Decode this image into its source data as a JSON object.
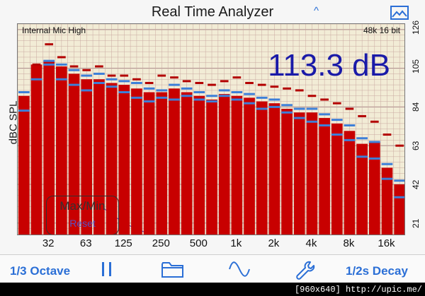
{
  "app": {
    "title": "Real Time Analyzer",
    "collapse_glyph": "^"
  },
  "readout": {
    "mic": "Internal Mic High",
    "sample_rate": "48k 16 bit",
    "level": "113.3 dB",
    "y_axis_label": "dBC SPL"
  },
  "buttons": {
    "max_min": "Max/Min",
    "reset": "Reset"
  },
  "toolbar": {
    "octave": "1/3 Octave",
    "decay": "1/2s Decay",
    "icons": [
      "pause-icon",
      "folder-icon",
      "waveform-icon",
      "wrench-icon"
    ]
  },
  "watermark": "[960x640] http://upic.me/",
  "colors": {
    "bar": "#c80000",
    "avg": "#3d7fd8",
    "peak": "#b30000",
    "grid": "#c9a8a0",
    "accent": "#2b6fd6",
    "readout": "#1a1aa8"
  },
  "chart_data": {
    "type": "bar",
    "ylabel": "dBC SPL",
    "ylim": [
      14,
      129
    ],
    "yticks": [
      21,
      42,
      63,
      84,
      105,
      126
    ],
    "xtick_labels": [
      "32",
      "63",
      "125",
      "250",
      "500",
      "1k",
      "2k",
      "4k",
      "8k",
      "16k"
    ],
    "xtick_bands": [
      2,
      5,
      8,
      11,
      14,
      17,
      20,
      23,
      26,
      29
    ],
    "bands": 31,
    "values": [
      90,
      107,
      109,
      106,
      102,
      99,
      99,
      97,
      96,
      94,
      92,
      92,
      94,
      92,
      90,
      88,
      91,
      90,
      89,
      87,
      86,
      83,
      81,
      81,
      78,
      75,
      71,
      64,
      65,
      51,
      42
    ],
    "avg": [
      82,
      99,
      107,
      99,
      96,
      93,
      97,
      95,
      92,
      89,
      87,
      89,
      88,
      90,
      88,
      87,
      90,
      88,
      86,
      83,
      84,
      81,
      78,
      76,
      74,
      69,
      66,
      57,
      56,
      45,
      35
    ],
    "avg_upper": [
      92,
      null,
      109,
      107,
      104,
      101,
      102,
      99,
      98,
      97,
      94,
      93,
      96,
      94,
      92,
      90,
      93,
      92,
      91,
      89,
      88,
      85,
      83,
      83,
      80,
      77,
      74,
      67,
      65,
      53,
      44
    ],
    "peak": [
      null,
      107,
      118,
      111,
      106,
      104,
      106,
      101,
      101,
      99,
      97,
      101,
      100,
      98,
      97,
      96,
      98,
      100,
      97,
      96,
      95,
      94,
      93,
      90,
      88,
      86,
      83,
      79,
      76,
      69,
      63
    ]
  }
}
